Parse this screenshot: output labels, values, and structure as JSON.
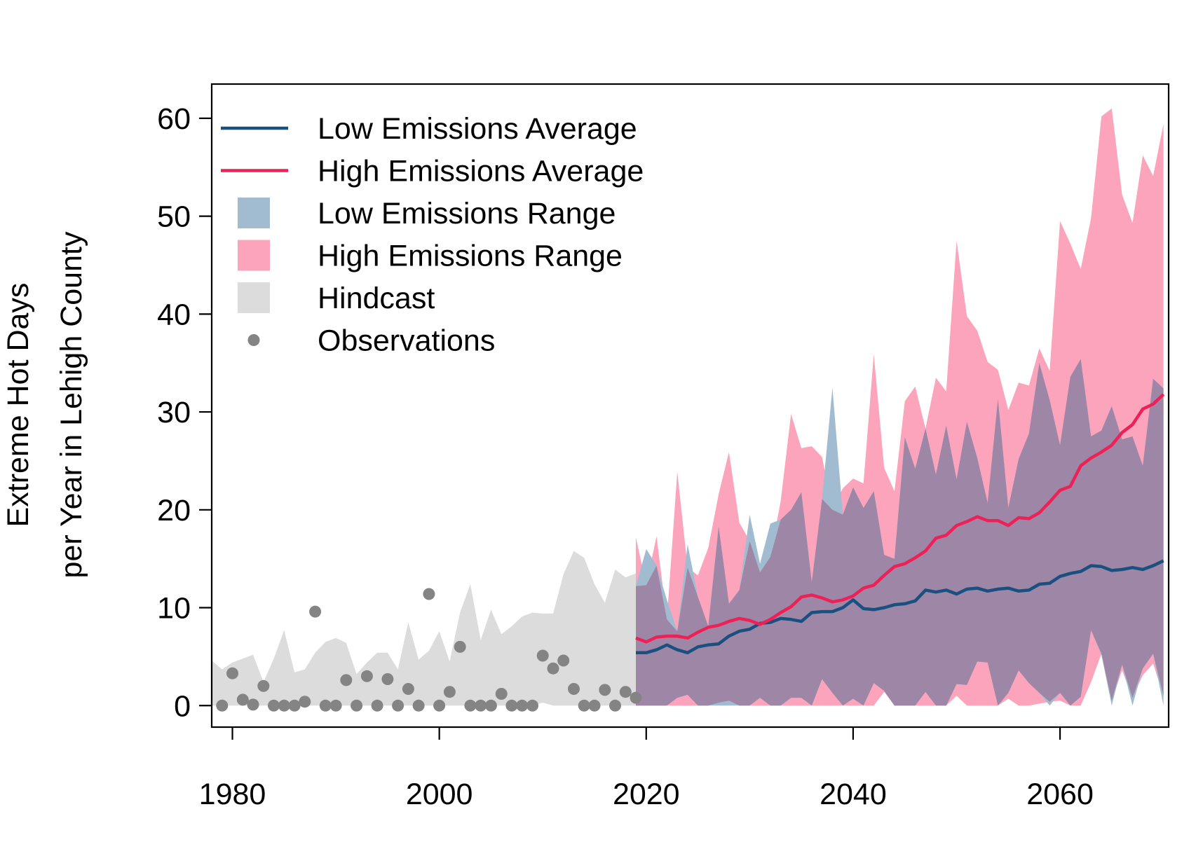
{
  "chart_data": {
    "type": "line",
    "ylabel_line1": "Extreme Hot Days",
    "ylabel_line2": "per Year in Lehigh County",
    "xlim": [
      1978,
      2070.5
    ],
    "ylim": [
      -2.2,
      63.5
    ],
    "x_ticks": [
      1980,
      2000,
      2020,
      2040,
      2060
    ],
    "y_ticks": [
      0,
      10,
      20,
      30,
      40,
      50,
      60
    ],
    "grid": false,
    "legend_position": "top-left",
    "legend": [
      {
        "label": "Low Emissions Average",
        "kind": "line",
        "color": "#1a5080"
      },
      {
        "label": "High Emissions Average",
        "kind": "line",
        "color": "#ee2157"
      },
      {
        "label": "Low Emissions Range",
        "kind": "fill",
        "color": "#a1bcd1"
      },
      {
        "label": "High Emissions Range",
        "kind": "fill",
        "color": "#fca4bc"
      },
      {
        "label": "Hindcast",
        "kind": "fill",
        "color": "#dcdcdc"
      },
      {
        "label": "Observations",
        "kind": "point",
        "color": "#848484"
      }
    ],
    "colors": {
      "low_avg": "#1a5080",
      "high_avg": "#ee2157",
      "low_range": "#a1bcd1",
      "high_range": "#fca4bc",
      "overlap": "#9e86a6",
      "hindcast": "#dcdcdc",
      "observations": "#848484"
    },
    "hindcast": {
      "x": [
        1978,
        1979,
        1980,
        1981,
        1982,
        1983,
        1984,
        1985,
        1986,
        1987,
        1988,
        1989,
        1990,
        1991,
        1992,
        1993,
        1994,
        1995,
        1996,
        1997,
        1998,
        1999,
        2000,
        2001,
        2002,
        2003,
        2004,
        2005,
        2006,
        2007,
        2008,
        2009,
        2010,
        2011,
        2012,
        2013,
        2014,
        2015,
        2016,
        2017,
        2018,
        2019
      ],
      "upper": [
        4.6,
        3.7,
        4.4,
        4.8,
        5.2,
        2.4,
        4.8,
        7.7,
        3.4,
        3.7,
        5.4,
        6.5,
        6.9,
        6.4,
        3.2,
        4.4,
        5.4,
        5.4,
        3.7,
        8.5,
        4.7,
        5.6,
        7.6,
        4.5,
        9.5,
        12.4,
        6.7,
        9.8,
        7.3,
        8.1,
        9.1,
        9.5,
        9.4,
        9.4,
        13.4,
        15.8,
        15.1,
        12.4,
        10.5,
        13.9,
        13.1,
        13.5
      ],
      "lower": [
        0,
        0,
        0,
        0,
        0,
        0,
        0,
        0,
        0,
        0,
        0,
        0,
        0,
        0,
        0,
        0,
        0,
        0,
        0,
        0,
        0,
        0,
        0,
        0,
        0,
        0,
        0,
        0,
        0,
        0,
        0,
        0,
        0.3,
        0,
        0,
        0,
        0,
        0,
        0,
        0,
        0,
        0
      ]
    },
    "observations": {
      "x": [
        1979,
        1980,
        1981,
        1982,
        1983,
        1984,
        1985,
        1986,
        1987,
        1988,
        1989,
        1990,
        1991,
        1992,
        1993,
        1994,
        1995,
        1996,
        1997,
        1998,
        1999,
        2000,
        2001,
        2002,
        2003,
        2004,
        2005,
        2006,
        2007,
        2008,
        2009,
        2010,
        2011,
        2012,
        2013,
        2014,
        2015,
        2016,
        2017,
        2018,
        2019
      ],
      "y": [
        0,
        3.3,
        0.6,
        0.1,
        2,
        0,
        0,
        0,
        0.4,
        9.6,
        0,
        0,
        2.6,
        0,
        3,
        0,
        2.7,
        0,
        1.7,
        0,
        11.4,
        0,
        1.4,
        6,
        0,
        0,
        0,
        1.2,
        0,
        0,
        0,
        5.1,
        3.8,
        4.6,
        1.7,
        0,
        0,
        1.6,
        0,
        1.4,
        0.8
      ]
    },
    "x": [
      2019,
      2020,
      2021,
      2022,
      2023,
      2024,
      2025,
      2026,
      2027,
      2028,
      2029,
      2030,
      2031,
      2032,
      2033,
      2034,
      2035,
      2036,
      2037,
      2038,
      2039,
      2040,
      2041,
      2042,
      2043,
      2044,
      2045,
      2046,
      2047,
      2048,
      2049,
      2050,
      2051,
      2052,
      2053,
      2054,
      2055,
      2056,
      2057,
      2058,
      2059,
      2060,
      2061,
      2062,
      2063,
      2064,
      2065,
      2066,
      2067,
      2068,
      2069,
      2070
    ],
    "high_range": {
      "upper": [
        17.2,
        12.3,
        17.3,
        8.8,
        23.9,
        14.1,
        13.3,
        16.1,
        21.6,
        25.9,
        18.7,
        16.8,
        13.6,
        15.2,
        20.9,
        29.8,
        26.3,
        26.5,
        25.4,
        20.0,
        22.2,
        23.2,
        22.7,
        35.9,
        24.3,
        21.9,
        31.1,
        32.6,
        28.3,
        33.5,
        32.1,
        47.5,
        39.8,
        38.3,
        35.1,
        34.3,
        30.2,
        33.0,
        32.7,
        36.5,
        34.2,
        49.5,
        47.2,
        44.6,
        49.8,
        60.2,
        61.0,
        52.2,
        49.3,
        56.2,
        54.1,
        59.4
      ],
      "lower": [
        0,
        0,
        0,
        0,
        0,
        0,
        0,
        0,
        0.3,
        0.5,
        0,
        0,
        0,
        0,
        0,
        0,
        0,
        0,
        0,
        0,
        0,
        0,
        0,
        0,
        1.4,
        0,
        0,
        0,
        0,
        0,
        0,
        1.0,
        0,
        0,
        0,
        0,
        0.7,
        0,
        0,
        0.2,
        0.4,
        0.5,
        0,
        0,
        2.4,
        5.3,
        0.5,
        3.6,
        0.8,
        3.1,
        4.3,
        1.0
      ]
    },
    "low_range": {
      "upper": [
        12.2,
        16.0,
        14.3,
        10.8,
        7.6,
        16.5,
        11.1,
        8.1,
        18.3,
        10.4,
        11.8,
        19.5,
        14.5,
        18.6,
        19.0,
        20.0,
        21.8,
        12.6,
        21.1,
        32.5,
        19.5,
        22.3,
        20.2,
        21.9,
        15.4,
        15.0,
        27.4,
        24.2,
        28.3,
        23.6,
        28.6,
        23.1,
        29.0,
        25.3,
        20.7,
        31.3,
        20.2,
        25.2,
        27.8,
        35.0,
        31.2,
        26.6,
        33.6,
        35.4,
        27.5,
        28.1,
        30.6,
        27.2,
        27.5,
        24.5,
        33.4,
        32.4
      ],
      "lower": [
        0,
        0,
        0,
        0,
        0.8,
        1.1,
        0,
        0,
        0,
        0,
        0,
        0,
        0.8,
        0,
        0,
        0.8,
        0.8,
        0,
        2.7,
        1.3,
        0,
        0.7,
        0,
        2.3,
        1.5,
        0,
        0,
        0,
        1.4,
        0,
        0,
        2.2,
        2.1,
        4.5,
        4.4,
        0,
        1.3,
        3.6,
        2.3,
        1.3,
        0,
        1.3,
        0,
        0.9,
        7.7,
        5.2,
        0,
        4.2,
        0,
        3.8,
        5.3,
        0
      ]
    },
    "series": [
      {
        "name": "Low Emissions Average",
        "key": "low_avg",
        "values": [
          5.4,
          5.4,
          5.7,
          6.2,
          5.7,
          5.4,
          6.0,
          6.2,
          6.3,
          7.1,
          7.6,
          7.8,
          8.4,
          8.5,
          8.9,
          8.8,
          8.6,
          9.5,
          9.6,
          9.6,
          10.0,
          10.8,
          9.9,
          9.8,
          10.0,
          10.3,
          10.4,
          10.7,
          11.8,
          11.6,
          11.8,
          11.4,
          11.9,
          12.0,
          11.7,
          11.9,
          12.0,
          11.7,
          11.8,
          12.4,
          12.5,
          13.2,
          13.5,
          13.7,
          14.3,
          14.2,
          13.8,
          13.9,
          14.1,
          13.9,
          14.3,
          14.8
        ]
      },
      {
        "name": "High Emissions Average",
        "key": "high_avg",
        "values": [
          6.9,
          6.5,
          7.0,
          7.1,
          7.1,
          6.9,
          7.5,
          8.0,
          8.2,
          8.6,
          8.9,
          8.7,
          8.3,
          8.8,
          9.5,
          10.1,
          11.1,
          11.3,
          11.0,
          10.6,
          10.8,
          11.2,
          12.0,
          12.3,
          13.3,
          14.2,
          14.5,
          15.1,
          15.8,
          17.1,
          17.4,
          18.4,
          18.8,
          19.3,
          18.9,
          18.9,
          18.4,
          19.2,
          19.1,
          19.7,
          20.8,
          22.0,
          22.4,
          24.5,
          25.3,
          25.9,
          26.6,
          27.9,
          28.7,
          30.3,
          30.8,
          31.8
        ]
      }
    ]
  }
}
